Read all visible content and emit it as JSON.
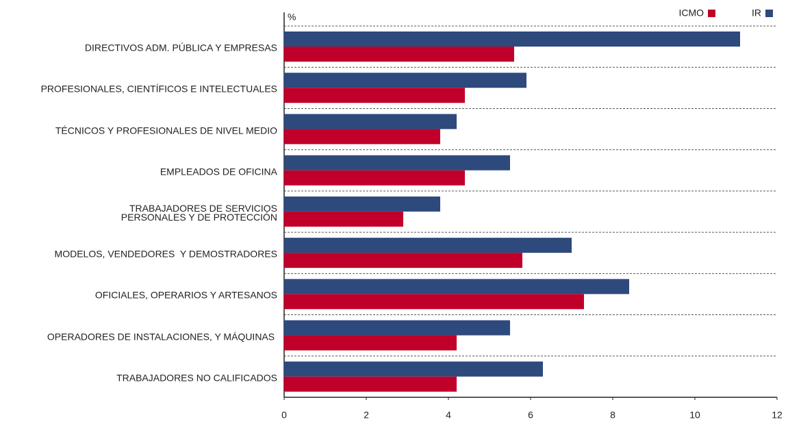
{
  "chart_data": {
    "type": "hbar",
    "y_label": "%",
    "categories": [
      "DIRECTIVOS ADM. PÚBLICA Y EMPRESAS",
      "PROFESIONALES, CIENTÍFICOS E INTELECTUALES",
      "TÉCNICOS Y PROFESIONALES DE NIVEL MEDIO",
      "EMPLEADOS DE OFICINA",
      "TRABAJADORES DE SERVICIOS\nPERSONALES Y DE PROTECCIÓN",
      "MODELOS, VENDEDORES  Y DEMOSTRADORES",
      "OFICIALES, OPERARIOS Y ARTESANOS",
      "OPERADORES DE INSTALACIONES, Y MÁQUINAS ",
      "TRABAJADORES NO CALIFICADOS"
    ],
    "series": [
      {
        "name": "IR",
        "color": "#2e4a7d",
        "values": [
          11.1,
          5.9,
          4.2,
          5.5,
          3.8,
          7.0,
          8.4,
          5.5,
          6.3
        ]
      },
      {
        "name": "ICMO",
        "color": "#c0002a",
        "values": [
          5.6,
          4.4,
          3.8,
          4.4,
          2.9,
          5.8,
          7.3,
          4.2,
          4.2
        ]
      }
    ],
    "xlim": [
      0,
      12
    ],
    "xticks": [
      0,
      2,
      4,
      6,
      8,
      10,
      12
    ]
  }
}
